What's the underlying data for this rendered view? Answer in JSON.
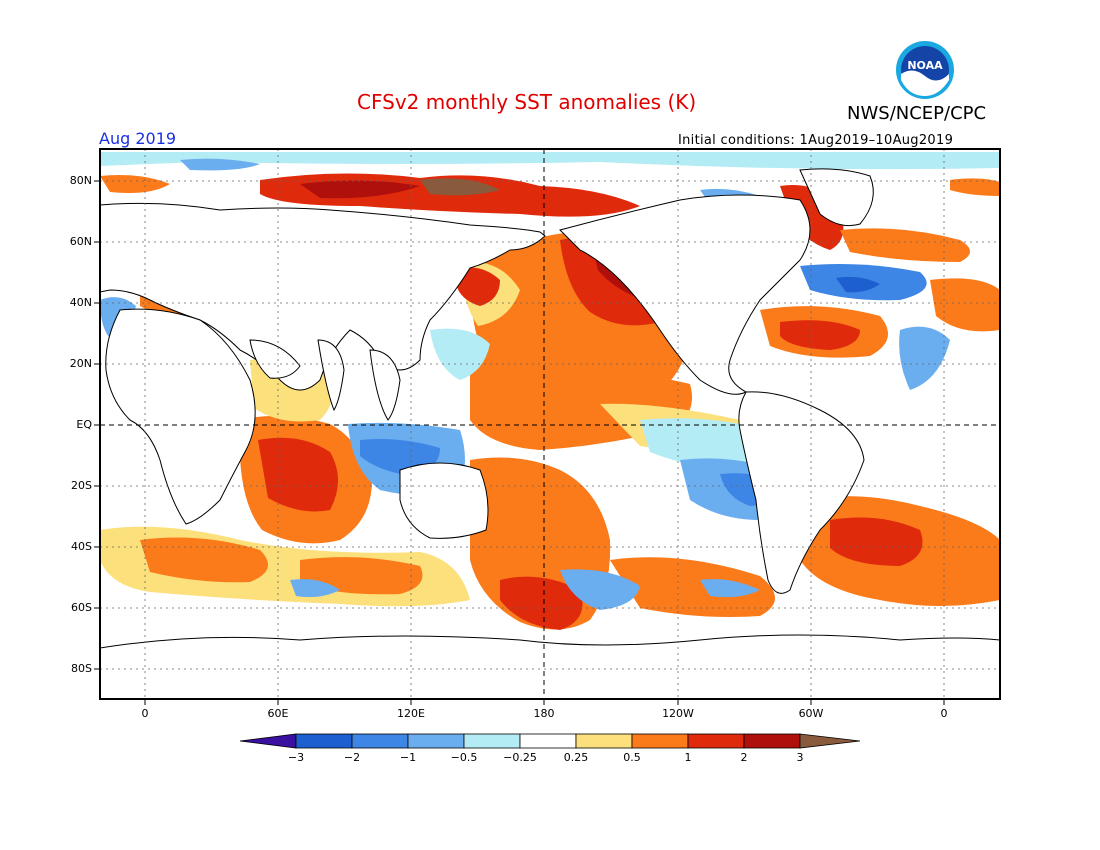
{
  "header": {
    "title": "CFSv2 monthly SST anomalies (K)",
    "agency": "NWS/NCEP/CPC",
    "logo_text": "NOAA",
    "month": "Aug 2019",
    "initial_conditions": "Initial conditions: 1Aug2019–10Aug2019"
  },
  "map": {
    "lat_labels": [
      "80N",
      "60N",
      "40N",
      "20N",
      "EQ",
      "20S",
      "40S",
      "60S",
      "80S"
    ],
    "lon_labels": [
      "0",
      "60E",
      "120E",
      "180",
      "120W",
      "60W",
      "0"
    ]
  },
  "colorbar": {
    "tick_labels": [
      "−3",
      "−2",
      "−1",
      "−0.5",
      "−0.25",
      "0.25",
      "0.5",
      "1",
      "2",
      "3"
    ],
    "colors": [
      "#3a10a0",
      "#1e5fd0",
      "#3d86e6",
      "#6aaef0",
      "#b4ecf6",
      "#ffffff",
      "#fce07c",
      "#fb7a1a",
      "#e02a0c",
      "#b0100c",
      "#8a5a3c"
    ]
  }
}
